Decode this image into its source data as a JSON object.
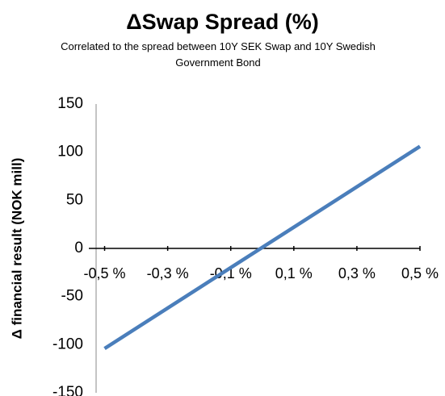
{
  "chart_data": {
    "type": "line",
    "title": "ΔSwap Spread (%)",
    "subtitle": "Correlated to the spread between 10Y SEK Swap and 10Y Swedish Government Bond",
    "y_label": "Δ financial result (NOK mill)",
    "x": [
      -0.5,
      0.5
    ],
    "series": [
      {
        "name": "ΔSwap Spread",
        "color": "#4a7ebb",
        "values": [
          -104,
          106
        ]
      }
    ],
    "xlim": [
      -0.55,
      0.5
    ],
    "xticks": [
      {
        "value": -0.5,
        "label": "-0,5 %"
      },
      {
        "value": -0.3,
        "label": "-0,3 %"
      },
      {
        "value": -0.1,
        "label": "-0,1 %"
      },
      {
        "value": 0.1,
        "label": "0,1 %"
      },
      {
        "value": 0.3,
        "label": "0,3 %"
      },
      {
        "value": 0.5,
        "label": "0,5 %"
      }
    ],
    "ylim": [
      -150,
      150
    ],
    "yticks": [
      -150,
      -100,
      -50,
      0,
      50,
      100,
      150
    ],
    "grid": false
  }
}
